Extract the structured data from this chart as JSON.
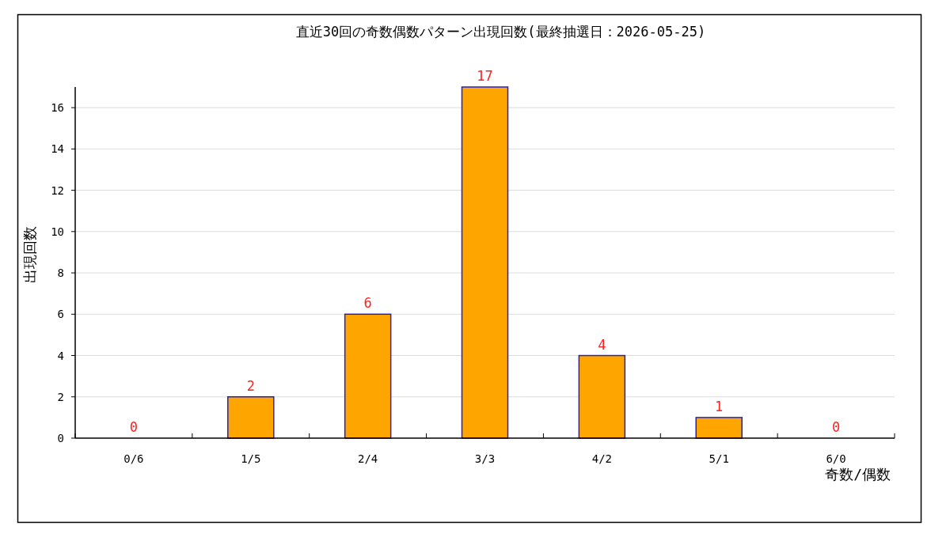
{
  "chart_data": {
    "type": "bar",
    "title": "直近30回の奇数偶数パターン出現回数(最終抽選日：2026-05-25)",
    "xlabel": "奇数/偶数",
    "ylabel": "出現回数",
    "categories": [
      "0/6",
      "1/5",
      "2/4",
      "3/3",
      "4/2",
      "5/1",
      "6/0"
    ],
    "values": [
      0,
      2,
      6,
      17,
      4,
      1,
      0
    ],
    "color": "#ffa500",
    "ylim": [
      0,
      17
    ],
    "yticks": [
      0,
      2,
      4,
      6,
      8,
      10,
      12,
      14,
      16
    ],
    "grid": "y",
    "data_labels": true
  }
}
